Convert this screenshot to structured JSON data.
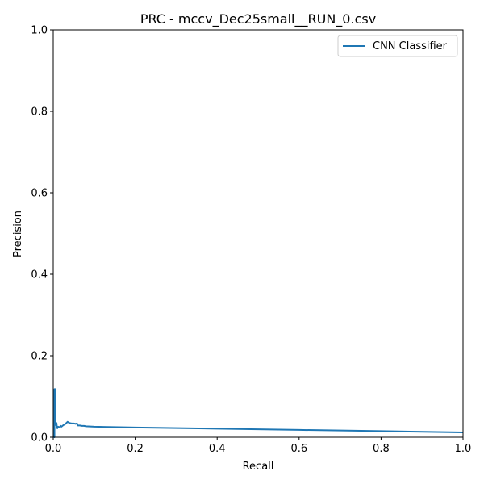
{
  "chart_data": {
    "type": "line",
    "title": "PRC - mccv_Dec25small__RUN_0.csv",
    "xlabel": "Recall",
    "ylabel": "Precision",
    "xlim": [
      0,
      1
    ],
    "ylim": [
      0,
      1
    ],
    "x_ticks": [
      "0.0",
      "0.2",
      "0.4",
      "0.6",
      "0.8",
      "1.0"
    ],
    "y_ticks": [
      "0.0",
      "0.2",
      "0.4",
      "0.6",
      "0.8",
      "1.0"
    ],
    "grid": false,
    "legend_position": "top-right",
    "series": [
      {
        "name": "CNN Classifier",
        "color": "#1f77b4",
        "points": [
          [
            0.0,
            0.0
          ],
          [
            0.003,
            0.0
          ],
          [
            0.003,
            0.118
          ],
          [
            0.005,
            0.118
          ],
          [
            0.005,
            0.04
          ],
          [
            0.006,
            0.03
          ],
          [
            0.008,
            0.035
          ],
          [
            0.009,
            0.025
          ],
          [
            0.01,
            0.022
          ],
          [
            0.012,
            0.026
          ],
          [
            0.015,
            0.024
          ],
          [
            0.018,
            0.028
          ],
          [
            0.02,
            0.026
          ],
          [
            0.025,
            0.03
          ],
          [
            0.03,
            0.033
          ],
          [
            0.035,
            0.038
          ],
          [
            0.04,
            0.035
          ],
          [
            0.045,
            0.034
          ],
          [
            0.05,
            0.034
          ],
          [
            0.055,
            0.033
          ],
          [
            0.058,
            0.034
          ],
          [
            0.06,
            0.029
          ],
          [
            0.065,
            0.029
          ],
          [
            0.07,
            0.028
          ],
          [
            0.075,
            0.028
          ],
          [
            0.08,
            0.027
          ],
          [
            0.1,
            0.026
          ],
          [
            0.2,
            0.024
          ],
          [
            0.4,
            0.021
          ],
          [
            0.6,
            0.018
          ],
          [
            0.8,
            0.015
          ],
          [
            1.0,
            0.012
          ]
        ]
      }
    ]
  }
}
